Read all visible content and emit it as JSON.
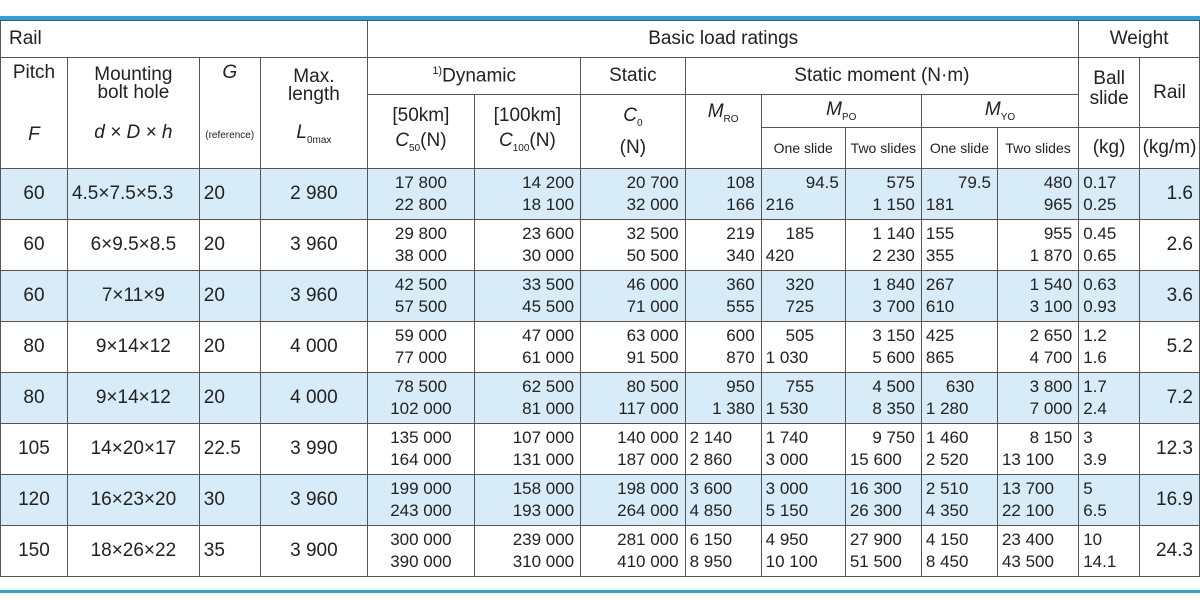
{
  "header": {
    "rail": "Rail",
    "basic_load_ratings": "Basic load ratings",
    "weight": "Weight",
    "pitch": "Pitch",
    "pitch_sym": "F",
    "mounting_1": "Mounting",
    "mounting_2": "bolt hole",
    "mounting_sym": "d × D × h",
    "g": "G",
    "g_ref": "(reference)",
    "maxlen_1": "Max.",
    "maxlen_2": "length",
    "maxlen_sym": "L",
    "maxlen_sub": "0max",
    "dynamic_sup": "1)",
    "dynamic": "Dynamic",
    "static": "Static",
    "static_moment": "Static moment (N·m)",
    "km50": "[50km]",
    "km100": "[100km]",
    "c50": "C",
    "c50_sub": "50",
    "c50_unit": "(N)",
    "c100": "C",
    "c100_sub": "100",
    "c100_unit": "(N)",
    "c0": "C",
    "c0_sub": "0",
    "c0_unit": "(N)",
    "mro": "M",
    "mro_sub": "RO",
    "mpo": "M",
    "mpo_sub": "PO",
    "myo": "M",
    "myo_sub": "YO",
    "one_slide": "One slide",
    "two_slides": "Two slides",
    "one_slide_y": "One slide",
    "two_slides_y": "Two slides",
    "ball_slide_1": "Ball",
    "ball_slide_2": "slide",
    "ball_unit": "(kg)",
    "rail_w": "Rail",
    "rail_unit": "(kg/m)"
  },
  "rows": [
    {
      "pitch": "60",
      "bolt": "4.5×7.5×5.3",
      "g": "20",
      "len": "2 980",
      "c50": [
        "17 800",
        "22 800"
      ],
      "c100": [
        "14 200",
        "18 100"
      ],
      "c0": [
        "20 700",
        "32 000"
      ],
      "mro": [
        "108",
        "166"
      ],
      "mpo1": [
        "94.5",
        "216"
      ],
      "mpo2": [
        "575",
        "1 150"
      ],
      "myo1": [
        "79.5",
        "181"
      ],
      "myo2": [
        "480",
        "965"
      ],
      "ball": [
        "0.17",
        "0.25"
      ],
      "rail": "1.6"
    },
    {
      "pitch": "60",
      "bolt": "6×9.5×8.5",
      "g": "20",
      "len": "3 960",
      "c50": [
        "29 800",
        "38 000"
      ],
      "c100": [
        "23 600",
        "30 000"
      ],
      "c0": [
        "32 500",
        "50 500"
      ],
      "mro": [
        "219",
        "340"
      ],
      "mpo1": [
        "185",
        "420"
      ],
      "mpo2": [
        "1 140",
        "2 230"
      ],
      "myo1": [
        "155",
        "355"
      ],
      "myo2": [
        "955",
        "1 870"
      ],
      "ball": [
        "0.45",
        "0.65"
      ],
      "rail": "2.6"
    },
    {
      "pitch": "60",
      "bolt": "7×11×9",
      "g": "20",
      "len": "3 960",
      "c50": [
        "42 500",
        "57 500"
      ],
      "c100": [
        "33 500",
        "45 500"
      ],
      "c0": [
        "46 000",
        "71 000"
      ],
      "mro": [
        "360",
        "555"
      ],
      "mpo1": [
        "320",
        "725"
      ],
      "mpo2": [
        "1 840",
        "3 700"
      ],
      "myo1": [
        "267",
        "610"
      ],
      "myo2": [
        "1 540",
        "3 100"
      ],
      "ball": [
        "0.63",
        "0.93"
      ],
      "rail": "3.6"
    },
    {
      "pitch": "80",
      "bolt": "9×14×12",
      "g": "20",
      "len": "4 000",
      "c50": [
        "59 000",
        "77 000"
      ],
      "c100": [
        "47 000",
        "61 000"
      ],
      "c0": [
        "63 000",
        "91 500"
      ],
      "mro": [
        "600",
        "870"
      ],
      "mpo1": [
        "505",
        "1 030"
      ],
      "mpo2": [
        "3 150",
        "5 600"
      ],
      "myo1": [
        "425",
        "865"
      ],
      "myo2": [
        "2 650",
        "4 700"
      ],
      "ball": [
        "1.2",
        "1.6"
      ],
      "rail": "5.2"
    },
    {
      "pitch": "80",
      "bolt": "9×14×12",
      "g": "20",
      "len": "4 000",
      "c50": [
        "78 500",
        "102 000"
      ],
      "c100": [
        "62 500",
        "81 000"
      ],
      "c0": [
        "80 500",
        "117 000"
      ],
      "mro": [
        "950",
        "1 380"
      ],
      "mpo1": [
        "755",
        "1 530"
      ],
      "mpo2": [
        "4 500",
        "8 350"
      ],
      "myo1": [
        "630",
        "1 280"
      ],
      "myo2": [
        "3 800",
        "7 000"
      ],
      "ball": [
        "1.7",
        "2.4"
      ],
      "rail": "7.2"
    },
    {
      "pitch": "105",
      "bolt": "14×20×17",
      "g": "22.5",
      "len": "3 990",
      "c50": [
        "135 000",
        "164 000"
      ],
      "c100": [
        "107 000",
        "131 000"
      ],
      "c0": [
        "140 000",
        "187 000"
      ],
      "mro": [
        "2 140",
        "2 860"
      ],
      "mpo1": [
        "1 740",
        "3 000"
      ],
      "mpo2": [
        "9 750",
        "15 600"
      ],
      "myo1": [
        "1 460",
        "2 520"
      ],
      "myo2": [
        "8 150",
        "13 100"
      ],
      "ball": [
        "3",
        "3.9"
      ],
      "rail": "12.3"
    },
    {
      "pitch": "120",
      "bolt": "16×23×20",
      "g": "30",
      "len": "3 960",
      "c50": [
        "199 000",
        "243 000"
      ],
      "c100": [
        "158 000",
        "193 000"
      ],
      "c0": [
        "198 000",
        "264 000"
      ],
      "mro": [
        "3 600",
        "4 850"
      ],
      "mpo1": [
        "3 000",
        "5 150"
      ],
      "mpo2": [
        "16 300",
        "26 300"
      ],
      "myo1": [
        "2 510",
        "4 350"
      ],
      "myo2": [
        "13 700",
        "22 100"
      ],
      "ball": [
        "5",
        "6.5"
      ],
      "rail": "16.9"
    },
    {
      "pitch": "150",
      "bolt": "18×26×22",
      "g": "35",
      "len": "3 900",
      "c50": [
        "300 000",
        "390 000"
      ],
      "c100": [
        "239 000",
        "310 000"
      ],
      "c0": [
        "281 000",
        "410 000"
      ],
      "mro": [
        "6 150",
        "8 950"
      ],
      "mpo1": [
        "4 950",
        "10 100"
      ],
      "mpo2": [
        "27 900",
        "51 500"
      ],
      "myo1": [
        "4 150",
        "8 450"
      ],
      "myo2": [
        "23 400",
        "43 500"
      ],
      "ball": [
        "10",
        "14.1"
      ],
      "rail": "24.3"
    }
  ],
  "colors": {
    "accent": "#29a3d9",
    "row_highlight": "#d7ecf8",
    "rule": "#555555"
  }
}
